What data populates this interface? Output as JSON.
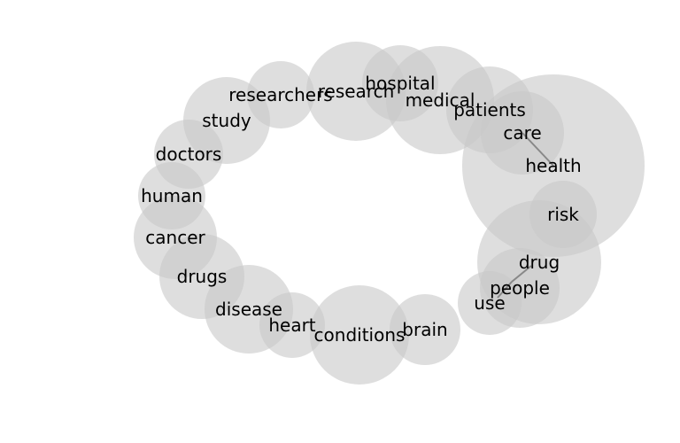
{
  "diagram": {
    "type": "bubble-network",
    "bubble_color": "#c8c8c8",
    "edge_color": "#888888",
    "text_color": "#000000",
    "nodes": [
      {
        "id": "health",
        "label": "health"
      },
      {
        "id": "drug",
        "label": "drug"
      },
      {
        "id": "medical",
        "label": "medical"
      },
      {
        "id": "research",
        "label": "research"
      },
      {
        "id": "conditions",
        "label": "conditions"
      },
      {
        "id": "disease",
        "label": "disease"
      },
      {
        "id": "patients",
        "label": "patients"
      },
      {
        "id": "study",
        "label": "study"
      },
      {
        "id": "care",
        "label": "care"
      },
      {
        "id": "drugs",
        "label": "drugs"
      },
      {
        "id": "cancer",
        "label": "cancer"
      },
      {
        "id": "people",
        "label": "people"
      },
      {
        "id": "hospital",
        "label": "hospital"
      },
      {
        "id": "researchers",
        "label": "researchers"
      },
      {
        "id": "brain",
        "label": "brain"
      },
      {
        "id": "doctors",
        "label": "doctors"
      },
      {
        "id": "risk",
        "label": "risk"
      },
      {
        "id": "human",
        "label": "human"
      },
      {
        "id": "heart",
        "label": "heart"
      },
      {
        "id": "use",
        "label": "use"
      }
    ],
    "edges": [
      [
        "care",
        "health"
      ],
      [
        "people",
        "drug"
      ],
      [
        "people",
        "use"
      ]
    ]
  }
}
